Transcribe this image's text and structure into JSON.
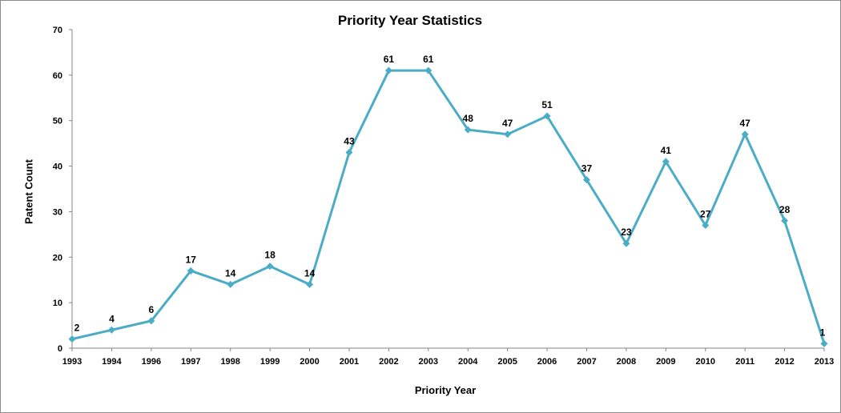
{
  "chart_data": {
    "type": "line",
    "title": "Priority Year Statistics",
    "xlabel": "Priority Year",
    "ylabel": "Patent Count",
    "categories": [
      "1993",
      "1994",
      "1996",
      "1997",
      "1998",
      "1999",
      "2000",
      "2001",
      "2002",
      "2003",
      "2004",
      "2005",
      "2006",
      "2007",
      "2008",
      "2009",
      "2010",
      "2011",
      "2012",
      "2013"
    ],
    "series": [
      {
        "values": [
          2,
          4,
          6,
          17,
          14,
          18,
          14,
          43,
          61,
          61,
          48,
          47,
          51,
          37,
          23,
          41,
          27,
          47,
          28,
          1
        ]
      }
    ],
    "ylim": [
      0,
      70
    ],
    "yticks": [
      0,
      10,
      20,
      30,
      40,
      50,
      60,
      70
    ],
    "grid": false,
    "data_labels": true,
    "line_color": "#4bacc6",
    "marker": "diamond"
  }
}
